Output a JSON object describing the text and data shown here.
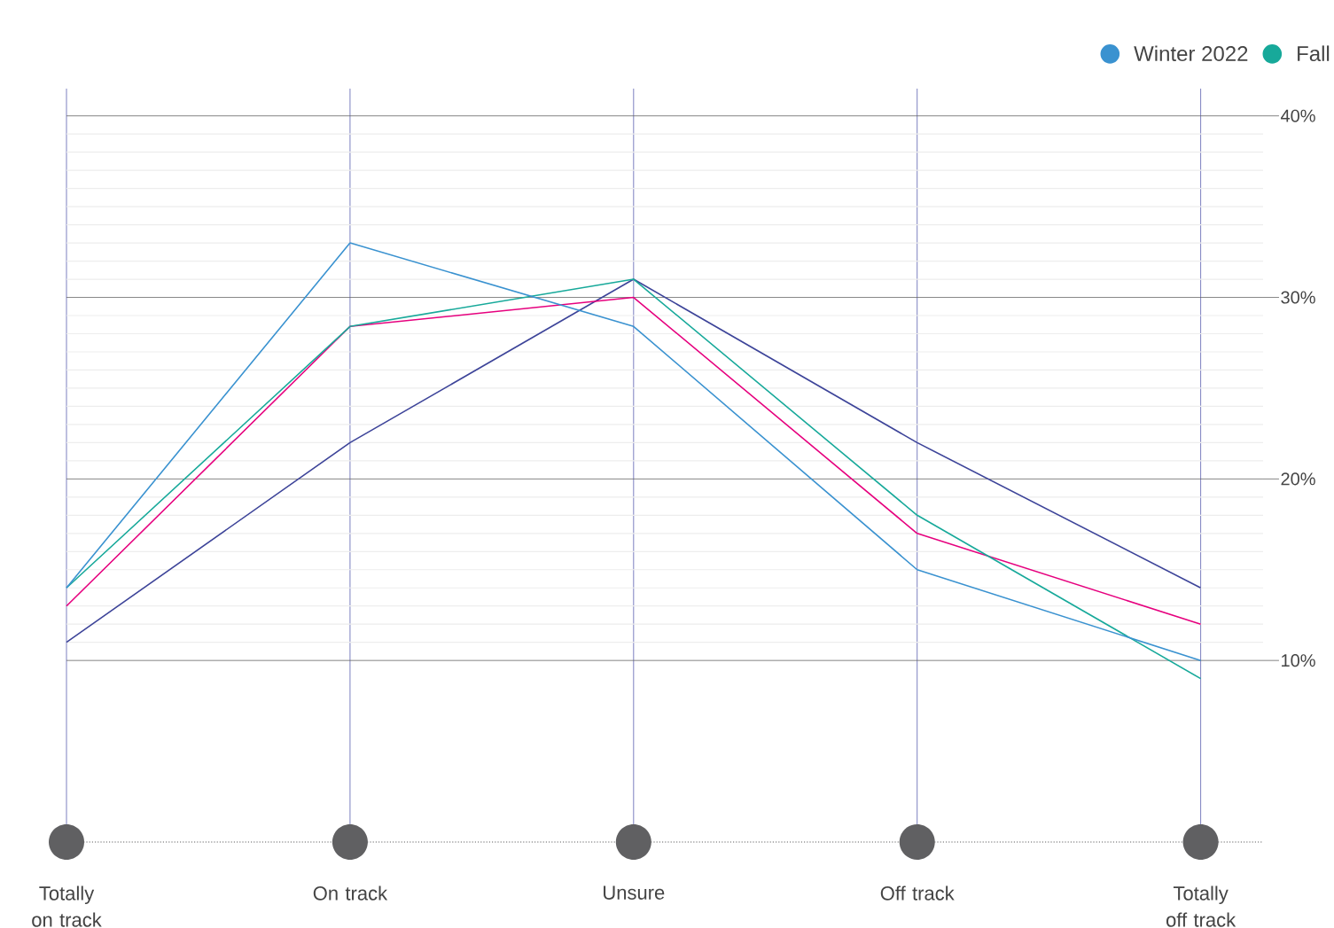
{
  "chart_data": {
    "type": "line",
    "categories": [
      "Totally on track",
      "On track",
      "Unsure",
      "Off track",
      "Totally off track"
    ],
    "series": [
      {
        "name": "Winter 2022",
        "color": "#3a92d0",
        "values": [
          14,
          33,
          28.4,
          15,
          10
        ]
      },
      {
        "name": "Fall",
        "color": "#17a99a",
        "values": [
          14,
          28.4,
          31,
          18,
          9
        ]
      },
      {
        "color": "#e6007e",
        "values": [
          13,
          28.4,
          30,
          17,
          12
        ]
      },
      {
        "color": "#3d4499",
        "values": [
          11,
          22,
          31,
          22,
          14
        ]
      }
    ],
    "ylim": [
      0,
      41.5
    ],
    "yticks": [
      {
        "value": 10,
        "label": "10%"
      },
      {
        "value": 20,
        "label": "20%"
      },
      {
        "value": 30,
        "label": "30%"
      },
      {
        "value": 40,
        "label": "40%"
      }
    ],
    "grid": true,
    "legend": "top right",
    "marker": "none",
    "line_style": "solid"
  }
}
